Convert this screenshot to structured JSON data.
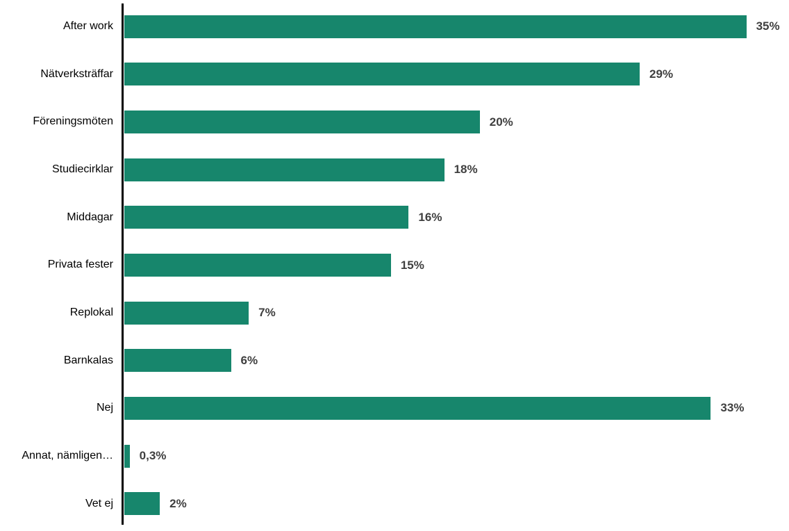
{
  "chart_data": {
    "type": "bar",
    "orientation": "horizontal",
    "title": "",
    "xlabel": "",
    "ylabel": "",
    "categories": [
      "After work",
      "Nätverksträffar",
      "Föreningsmöten",
      "Studiecirklar",
      "Middagar",
      "Privata fester",
      "Replokal",
      "Barnkalas",
      "Nej",
      "Annat, nämligen…",
      "Vet ej"
    ],
    "values": [
      35,
      29,
      20,
      18,
      16,
      15,
      7,
      6,
      33,
      0.3,
      2
    ],
    "value_labels": [
      "35%",
      "29%",
      "20%",
      "18%",
      "16%",
      "15%",
      "7%",
      "6%",
      "33%",
      "0,3%",
      "2%"
    ],
    "xlim": [
      0,
      37.4
    ],
    "grid": false,
    "legend": null,
    "bar_color": "#17866C",
    "value_label_color": "#3F3F3F",
    "category_label_color": "#000000",
    "axis_line_color": "#000000"
  }
}
